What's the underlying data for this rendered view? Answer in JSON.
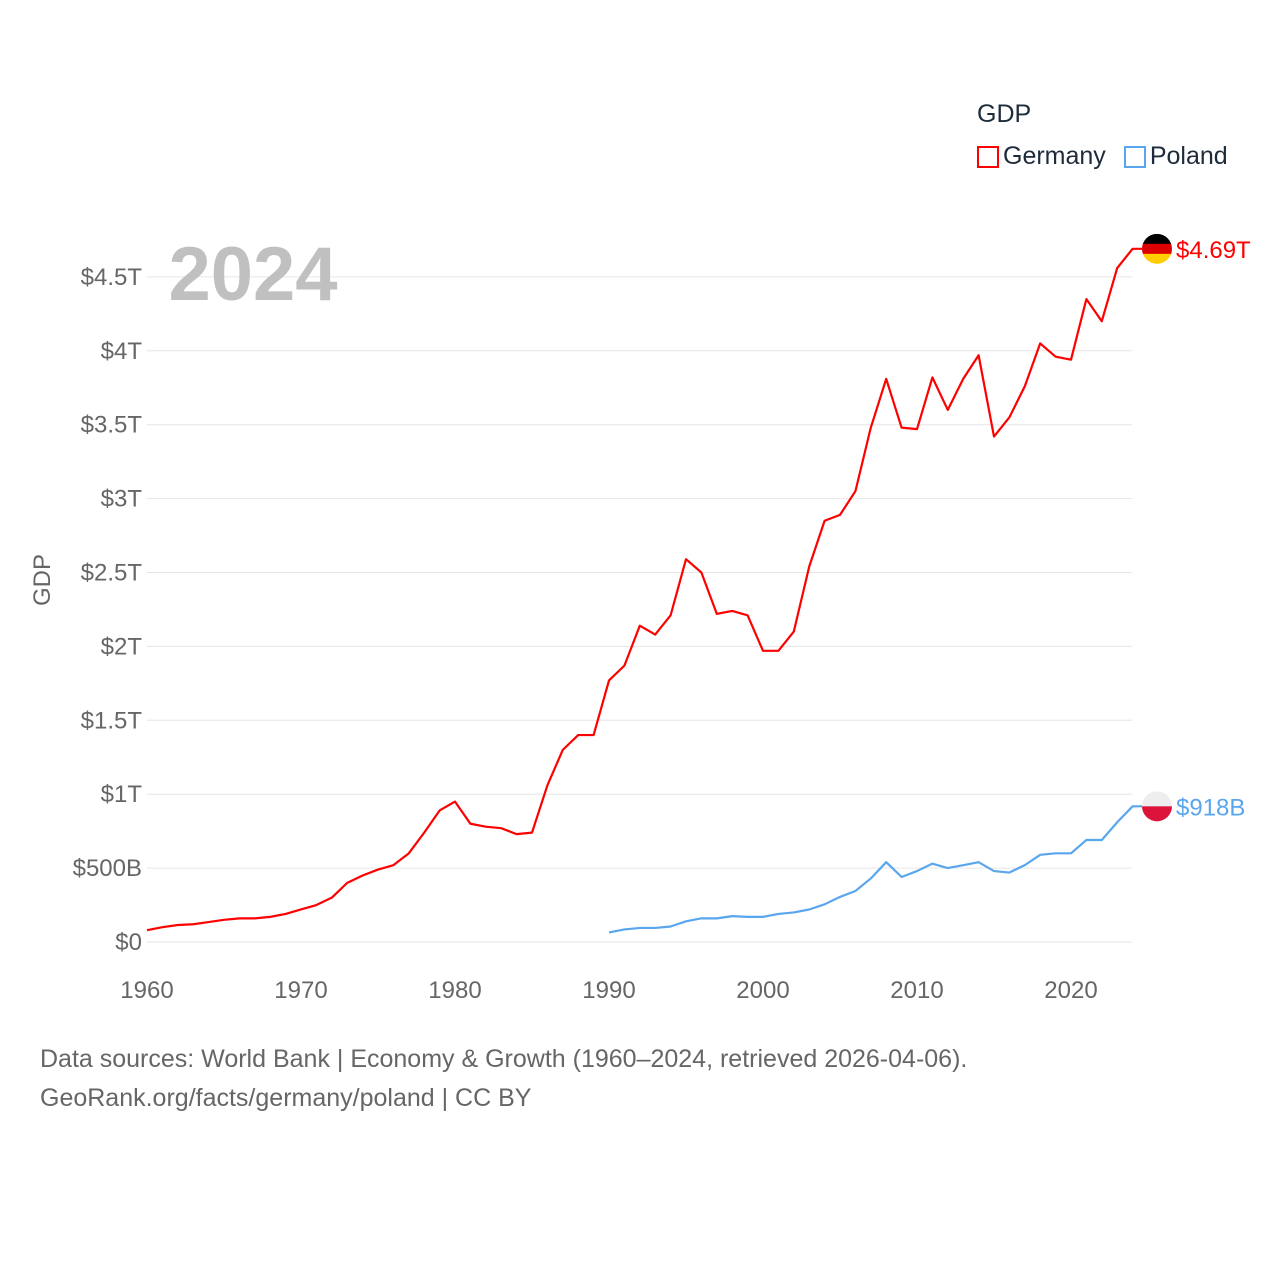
{
  "chart_data": {
    "type": "line",
    "title": "2024",
    "ylabel": "GDP",
    "xlabel": "",
    "legend_title": "GDP",
    "legend_position": "top-right",
    "xlim": [
      1960,
      2024
    ],
    "ylim": [
      0,
      4.7
    ],
    "x_ticks": [
      1960,
      1970,
      1980,
      1990,
      2000,
      2010,
      2020
    ],
    "x_tick_labels": [
      "1960",
      "1970",
      "1980",
      "1990",
      "2000",
      "2010",
      "2020"
    ],
    "y_ticks": [
      0,
      0.5,
      1,
      1.5,
      2,
      2.5,
      3,
      3.5,
      4,
      4.5
    ],
    "y_tick_labels": [
      "$0",
      "$500B",
      "$1T",
      "$1.5T",
      "$2T",
      "$2.5T",
      "$3T",
      "$3.5T",
      "$4T",
      "$4.5T"
    ],
    "y_unit": "trillion USD",
    "series": [
      {
        "name": "Germany",
        "color": "#ff0000",
        "end_label": "$4.69T",
        "flag": "germany-flag",
        "x_start": 1960,
        "values": [
          0.08,
          0.1,
          0.115,
          0.12,
          0.135,
          0.15,
          0.16,
          0.16,
          0.17,
          0.19,
          0.22,
          0.25,
          0.3,
          0.4,
          0.45,
          0.49,
          0.52,
          0.6,
          0.74,
          0.89,
          0.95,
          0.8,
          0.78,
          0.77,
          0.73,
          0.74,
          1.06,
          1.3,
          1.4,
          1.4,
          1.77,
          1.87,
          2.14,
          2.08,
          2.21,
          2.59,
          2.5,
          2.22,
          2.24,
          2.21,
          1.97,
          1.97,
          2.1,
          2.54,
          2.85,
          2.89,
          3.05,
          3.48,
          3.81,
          3.48,
          3.47,
          3.82,
          3.6,
          3.81,
          3.97,
          3.42,
          3.55,
          3.76,
          4.05,
          3.96,
          3.94,
          4.35,
          4.2,
          4.56,
          4.69
        ]
      },
      {
        "name": "Poland",
        "color": "#5aa6ee",
        "end_label": "$918B",
        "flag": "poland-flag",
        "x_start": 1990,
        "values": [
          0.065,
          0.085,
          0.095,
          0.095,
          0.105,
          0.14,
          0.16,
          0.16,
          0.175,
          0.17,
          0.17,
          0.19,
          0.2,
          0.22,
          0.255,
          0.305,
          0.345,
          0.43,
          0.54,
          0.44,
          0.48,
          0.53,
          0.5,
          0.52,
          0.54,
          0.48,
          0.47,
          0.52,
          0.59,
          0.6,
          0.6,
          0.69,
          0.69,
          0.81,
          0.918
        ]
      }
    ]
  },
  "footer": {
    "line1": "Data sources: World Bank | Economy & Growth (1960–2024, retrieved 2026-04-06).",
    "line2": "GeoRank.org/facts/germany/poland | CC BY"
  }
}
